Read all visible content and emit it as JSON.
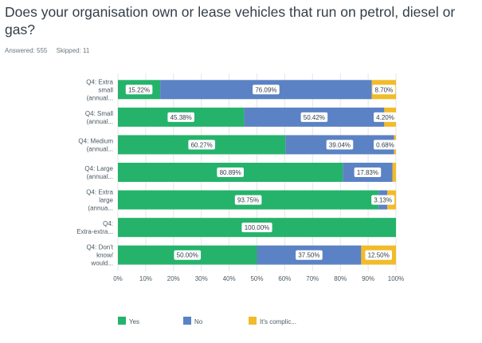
{
  "question": {
    "title": "Does your organisation own or lease vehicles that run on petrol, diesel or gas?"
  },
  "stats": {
    "answered": "Answered: 555",
    "skipped": "Skipped: 11"
  },
  "colors": {
    "yes": "#25b36b",
    "no": "#5b82c4",
    "complicated": "#f2bb2a",
    "grid": "#e6e6e6",
    "label_bg": "#ffffff"
  },
  "chart_data": {
    "type": "bar",
    "orientation": "horizontal",
    "stacked": true,
    "categories": [
      [
        "Q4: Extra",
        "small",
        "(annual..."
      ],
      [
        "Q4: Small",
        "(annual..."
      ],
      [
        "Q4: Medium",
        "(annual..."
      ],
      [
        "Q4: Large",
        "(annual..."
      ],
      [
        "Q4: Extra",
        "large",
        "(annua..."
      ],
      [
        "Q4:",
        "Extra-extra..."
      ],
      [
        "Q4: Don't",
        "know/",
        "would..."
      ]
    ],
    "series": [
      {
        "name": "Yes",
        "color_key": "yes",
        "values": [
          15.22,
          45.38,
          60.27,
          80.89,
          93.75,
          100.0,
          50.0
        ]
      },
      {
        "name": "No",
        "color_key": "no",
        "values": [
          76.09,
          50.42,
          39.04,
          17.83,
          3.13,
          0.0,
          37.5
        ]
      },
      {
        "name": "It's complic...",
        "color_key": "complicated",
        "values": [
          8.7,
          4.2,
          0.68,
          1.28,
          3.12,
          0.0,
          12.5
        ]
      }
    ],
    "data_labels": [
      [
        "15.22%",
        "76.09%",
        "8.70%"
      ],
      [
        "45.38%",
        "50.42%",
        "4.20%"
      ],
      [
        "60.27%",
        "39.04%",
        "0.68%"
      ],
      [
        "80.89%",
        "17.83%",
        ""
      ],
      [
        "93.75%",
        "3.13%",
        ""
      ],
      [
        "100.00%",
        "",
        ""
      ],
      [
        "50.00%",
        "37.50%",
        "12.50%"
      ]
    ],
    "xlim": [
      0,
      100
    ],
    "xticks": [
      "0%",
      "10%",
      "20%",
      "30%",
      "40%",
      "50%",
      "60%",
      "70%",
      "80%",
      "90%",
      "100%"
    ],
    "grid": true,
    "legend": "bottom"
  }
}
